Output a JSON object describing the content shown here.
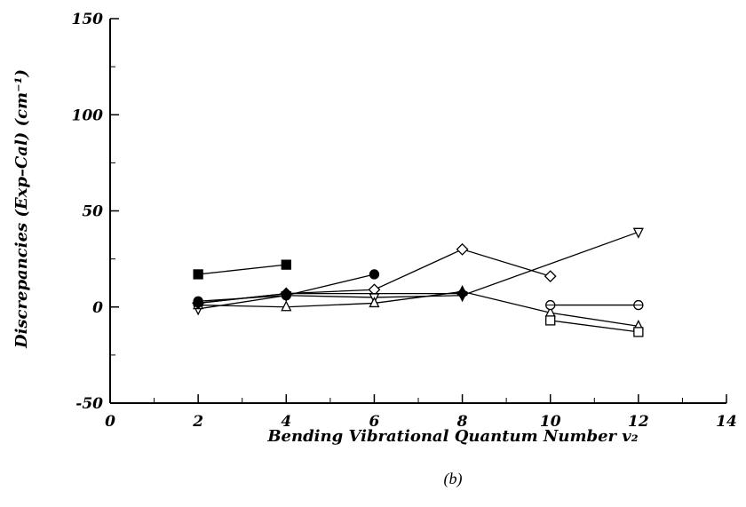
{
  "chart_data": {
    "type": "line",
    "title": "",
    "xlabel": "Bending Vibrational Quantum Number v₂",
    "ylabel": "Discrepancies (Exp–Cal) (cm⁻¹)",
    "caption": "(b)",
    "xlim": [
      0,
      14
    ],
    "ylim": [
      -50,
      150
    ],
    "x_ticks": [
      "0",
      "2",
      "4",
      "6",
      "8",
      "10",
      "12",
      "14"
    ],
    "y_ticks": [
      "-50",
      "0",
      "50",
      "100",
      "150"
    ],
    "x_tick_values": [
      0,
      2,
      4,
      6,
      8,
      10,
      12,
      14
    ],
    "y_tick_values": [
      -50,
      0,
      50,
      100,
      150
    ],
    "grid": false,
    "series": [
      {
        "marker": "filled-square",
        "x": [
          2,
          4
        ],
        "y": [
          17,
          22
        ]
      },
      {
        "marker": "filled-circle",
        "x": [
          2,
          4,
          6
        ],
        "y": [
          3,
          6,
          17
        ]
      },
      {
        "marker": "open-diamond",
        "x": [
          2,
          4,
          6,
          8,
          10
        ],
        "y": [
          2,
          7,
          9,
          30,
          16
        ]
      },
      {
        "marker": "open-down-triangle",
        "x": [
          2,
          4,
          6,
          8,
          12
        ],
        "y": [
          -1,
          6,
          5,
          6,
          39
        ]
      },
      {
        "marker": "open-up-triangle",
        "x": [
          2,
          4,
          6,
          8,
          10,
          12
        ],
        "y": [
          1,
          0,
          2,
          8,
          -3,
          -10
        ]
      },
      {
        "marker": "open-square",
        "x": [
          10,
          12
        ],
        "y": [
          -7,
          -13
        ]
      },
      {
        "marker": "open-circle",
        "x": [
          10,
          12
        ],
        "y": [
          1,
          1
        ]
      },
      {
        "marker": "filled-diamond",
        "x": [
          2,
          4,
          8
        ],
        "y": [
          2,
          7,
          7
        ]
      }
    ]
  }
}
